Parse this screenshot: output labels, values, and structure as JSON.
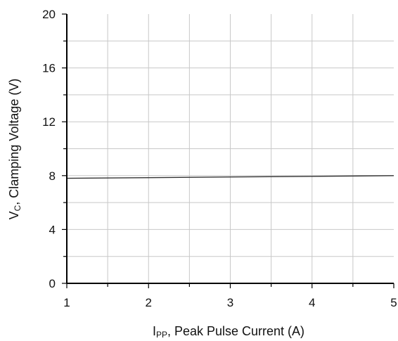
{
  "chart_data": {
    "type": "line",
    "xlabel_main": "I",
    "xlabel_sub": "PP",
    "xlabel_rest": ", Peak Pulse Current (A)",
    "ylabel_main": "V",
    "ylabel_sub": "C",
    "ylabel_rest": ", Clamping Voltage (V)",
    "xlim": [
      1,
      5
    ],
    "ylim": [
      0,
      20
    ],
    "x_ticks": [
      1,
      2,
      3,
      4,
      5
    ],
    "y_ticks": [
      0,
      4,
      8,
      12,
      16,
      20
    ],
    "x_tick_labels": [
      "1",
      "2",
      "3",
      "4",
      "5"
    ],
    "y_tick_labels": [
      "0",
      "4",
      "8",
      "12",
      "16",
      "20"
    ],
    "x_minor_step": 0.5,
    "y_minor_step": 2,
    "grid": true,
    "series": [
      {
        "x": [
          1,
          2,
          3,
          4,
          5
        ],
        "values": [
          7.8,
          7.85,
          7.9,
          7.95,
          8.0
        ],
        "color": "#333333"
      }
    ]
  }
}
